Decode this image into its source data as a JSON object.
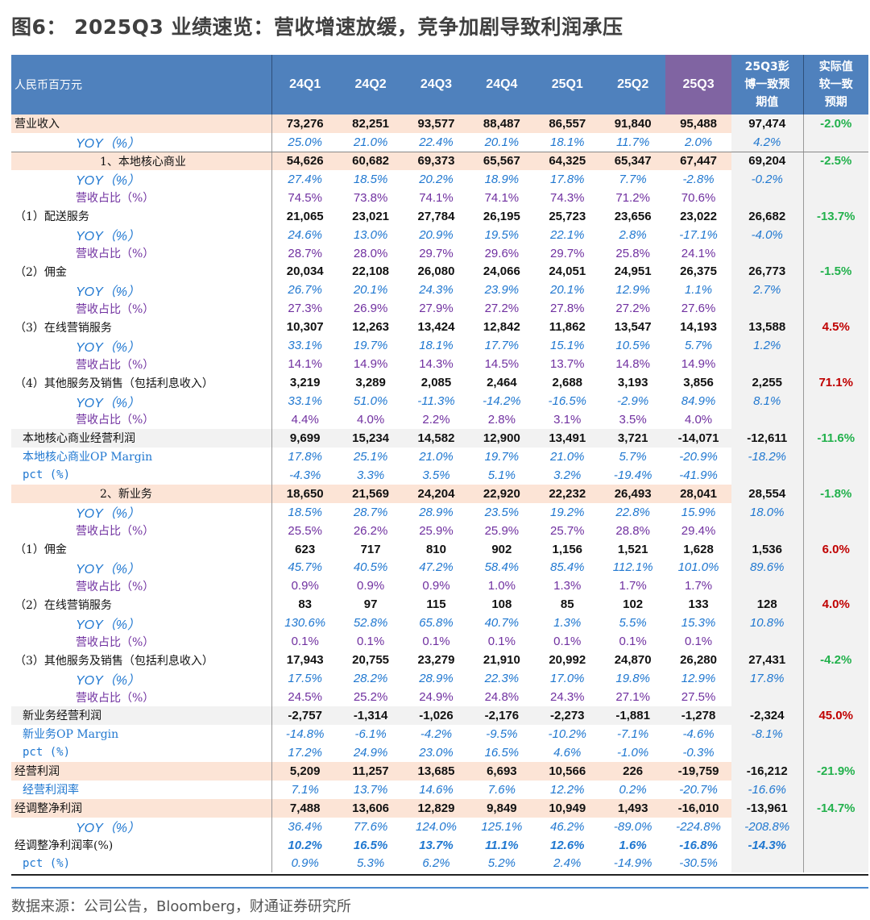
{
  "title": "图6： 2025Q3 业绩速览：营收增速放缓，竞争加剧导致利润承压",
  "header": {
    "unit": "人民币百万元",
    "periods": [
      "24Q1",
      "24Q2",
      "24Q3",
      "24Q4",
      "25Q1",
      "25Q2",
      "25Q3"
    ],
    "consensus": [
      "25Q3彭",
      "博一致预",
      "期值"
    ],
    "delta": [
      "实际值",
      "较一致",
      "预期"
    ]
  },
  "colors": {
    "header_bg": "#4f81bd",
    "current_quarter_bg": "#8064a2",
    "peach_row": "#fce4d6",
    "gray_row": "#f2f2f2",
    "yoy": "#1f77d0",
    "share": "#7030a0",
    "positive_delta": "#c00000",
    "negative_delta": "#22b14c"
  },
  "rows": [
    {
      "label": "营业收入",
      "type": "main peach",
      "indent": 4,
      "values": [
        "73,276",
        "82,251",
        "93,577",
        "88,487",
        "86,557",
        "91,840",
        "95,488"
      ],
      "consensus": "97,474",
      "delta": "-2.0%",
      "delta_color": "green"
    },
    {
      "label": "YOY（%）",
      "type": "yoy",
      "indent": 80,
      "values": [
        "25.0%",
        "21.0%",
        "22.4%",
        "20.1%",
        "18.1%",
        "11.7%",
        "2.0%"
      ],
      "consensus": "4.2%",
      "delta": ""
    },
    {
      "label": "1、本地核心商业",
      "type": "main peach sep",
      "indent": 110,
      "values": [
        "54,626",
        "60,682",
        "69,373",
        "65,567",
        "64,325",
        "65,347",
        "67,447"
      ],
      "consensus": "69,204",
      "delta": "-2.5%",
      "delta_color": "green"
    },
    {
      "label": "YOY（%）",
      "type": "yoy",
      "indent": 80,
      "values": [
        "27.4%",
        "18.5%",
        "20.2%",
        "18.9%",
        "17.8%",
        "7.7%",
        "-2.8%"
      ],
      "consensus": "-0.2%",
      "delta": ""
    },
    {
      "label": "营收占比（%）",
      "type": "share",
      "indent": 80,
      "values": [
        "74.5%",
        "73.8%",
        "74.1%",
        "74.1%",
        "74.3%",
        "71.2%",
        "70.6%"
      ],
      "consensus": "",
      "delta": ""
    },
    {
      "label": "（1）配送服务",
      "type": "main",
      "indent": 4,
      "values": [
        "21,065",
        "23,021",
        "27,784",
        "26,195",
        "25,723",
        "23,656",
        "23,022"
      ],
      "consensus": "26,682",
      "delta": "-13.7%",
      "delta_color": "green"
    },
    {
      "label": "YOY（%）",
      "type": "yoy",
      "indent": 80,
      "values": [
        "24.6%",
        "13.0%",
        "20.9%",
        "19.5%",
        "22.1%",
        "2.8%",
        "-17.1%"
      ],
      "consensus": "-4.0%",
      "delta": ""
    },
    {
      "label": "营收占比（%）",
      "type": "share",
      "indent": 80,
      "values": [
        "28.7%",
        "28.0%",
        "29.7%",
        "29.6%",
        "29.7%",
        "25.8%",
        "24.1%"
      ],
      "consensus": "",
      "delta": ""
    },
    {
      "label": "（2）佣金",
      "type": "main",
      "indent": 4,
      "values": [
        "20,034",
        "22,108",
        "26,080",
        "24,066",
        "24,051",
        "24,951",
        "26,375"
      ],
      "consensus": "26,773",
      "delta": "-1.5%",
      "delta_color": "green"
    },
    {
      "label": "YOY（%）",
      "type": "yoy",
      "indent": 80,
      "values": [
        "26.7%",
        "20.1%",
        "24.3%",
        "23.9%",
        "20.1%",
        "12.9%",
        "1.1%"
      ],
      "consensus": "2.7%",
      "delta": ""
    },
    {
      "label": "营收占比（%）",
      "type": "share",
      "indent": 80,
      "values": [
        "27.3%",
        "26.9%",
        "27.9%",
        "27.2%",
        "27.8%",
        "27.2%",
        "27.6%"
      ],
      "consensus": "",
      "delta": ""
    },
    {
      "label": "（3）在线营销服务",
      "type": "main",
      "indent": 4,
      "values": [
        "10,307",
        "12,263",
        "13,424",
        "12,842",
        "11,862",
        "13,547",
        "14,193"
      ],
      "consensus": "13,588",
      "delta": "4.5%",
      "delta_color": "red"
    },
    {
      "label": "YOY（%）",
      "type": "yoy",
      "indent": 80,
      "values": [
        "33.1%",
        "19.7%",
        "18.1%",
        "17.7%",
        "15.1%",
        "10.5%",
        "5.7%"
      ],
      "consensus": "1.2%",
      "delta": ""
    },
    {
      "label": "营收占比（%）",
      "type": "share",
      "indent": 80,
      "values": [
        "14.1%",
        "14.9%",
        "14.3%",
        "14.5%",
        "13.7%",
        "14.8%",
        "14.9%"
      ],
      "consensus": "",
      "delta": ""
    },
    {
      "label": "（4）其他服务及销售（包括利息收入）",
      "type": "main",
      "indent": 4,
      "values": [
        "3,219",
        "3,289",
        "2,085",
        "2,464",
        "2,688",
        "3,193",
        "3,856"
      ],
      "consensus": "2,255",
      "delta": "71.1%",
      "delta_color": "red"
    },
    {
      "label": "YOY（%）",
      "type": "yoy",
      "indent": 80,
      "values": [
        "33.1%",
        "51.0%",
        "-11.3%",
        "-14.2%",
        "-16.5%",
        "-2.9%",
        "84.9%"
      ],
      "consensus": "8.1%",
      "delta": ""
    },
    {
      "label": "营收占比（%）",
      "type": "share",
      "indent": 80,
      "values": [
        "4.4%",
        "4.0%",
        "2.2%",
        "2.8%",
        "3.1%",
        "3.5%",
        "4.0%"
      ],
      "consensus": "",
      "delta": ""
    },
    {
      "label": "本地核心商业经营利润",
      "type": "main gray",
      "indent": 14,
      "values": [
        "9,699",
        "15,234",
        "14,582",
        "12,900",
        "13,491",
        "3,721",
        "-14,071"
      ],
      "consensus": "-12,611",
      "delta": "-11.6%",
      "delta_color": "green"
    },
    {
      "label": "本地核心商业OP Margin",
      "type": "margin",
      "indent": 14,
      "values": [
        "17.8%",
        "25.1%",
        "21.0%",
        "19.7%",
        "21.0%",
        "5.7%",
        "-20.9%"
      ],
      "consensus": "-18.2%",
      "delta": ""
    },
    {
      "label": "pct (%)",
      "type": "pct",
      "indent": 14,
      "values": [
        "-4.3%",
        "3.3%",
        "3.5%",
        "5.1%",
        "3.2%",
        "-19.4%",
        "-41.9%"
      ],
      "consensus": "",
      "delta": ""
    },
    {
      "label": "2、新业务",
      "type": "main peach",
      "indent": 110,
      "values": [
        "18,650",
        "21,569",
        "24,204",
        "22,920",
        "22,232",
        "26,493",
        "28,041"
      ],
      "consensus": "28,554",
      "delta": "-1.8%",
      "delta_color": "green"
    },
    {
      "label": "YOY（%）",
      "type": "yoy",
      "indent": 80,
      "values": [
        "18.5%",
        "28.7%",
        "28.9%",
        "23.5%",
        "19.2%",
        "22.8%",
        "15.9%"
      ],
      "consensus": "18.0%",
      "delta": ""
    },
    {
      "label": "营收占比（%）",
      "type": "share",
      "indent": 80,
      "values": [
        "25.5%",
        "26.2%",
        "25.9%",
        "25.9%",
        "25.7%",
        "28.8%",
        "29.4%"
      ],
      "consensus": "",
      "delta": ""
    },
    {
      "label": "（1）佣金",
      "type": "main",
      "indent": 4,
      "values": [
        "623",
        "717",
        "810",
        "902",
        "1,156",
        "1,521",
        "1,628"
      ],
      "consensus": "1,536",
      "delta": "6.0%",
      "delta_color": "red"
    },
    {
      "label": "YOY（%）",
      "type": "yoy",
      "indent": 80,
      "values": [
        "45.7%",
        "40.5%",
        "47.2%",
        "58.4%",
        "85.4%",
        "112.1%",
        "101.0%"
      ],
      "consensus": "89.6%",
      "delta": ""
    },
    {
      "label": "营收占比（%）",
      "type": "share",
      "indent": 80,
      "values": [
        "0.9%",
        "0.9%",
        "0.9%",
        "1.0%",
        "1.3%",
        "1.7%",
        "1.7%"
      ],
      "consensus": "",
      "delta": ""
    },
    {
      "label": "（2）在线营销服务",
      "type": "main",
      "indent": 4,
      "values": [
        "83",
        "97",
        "115",
        "108",
        "85",
        "102",
        "133"
      ],
      "consensus": "128",
      "delta": "4.0%",
      "delta_color": "red"
    },
    {
      "label": "YOY（%）",
      "type": "yoy",
      "indent": 80,
      "values": [
        "130.6%",
        "52.8%",
        "65.8%",
        "40.7%",
        "1.3%",
        "5.5%",
        "15.3%"
      ],
      "consensus": "10.8%",
      "delta": ""
    },
    {
      "label": "营收占比（%）",
      "type": "share",
      "indent": 80,
      "values": [
        "0.1%",
        "0.1%",
        "0.1%",
        "0.1%",
        "0.1%",
        "0.1%",
        "0.1%"
      ],
      "consensus": "",
      "delta": ""
    },
    {
      "label": "（3）其他服务及销售（包括利息收入）",
      "type": "main",
      "indent": 4,
      "values": [
        "17,943",
        "20,755",
        "23,279",
        "21,910",
        "20,992",
        "24,870",
        "26,280"
      ],
      "consensus": "27,431",
      "delta": "-4.2%",
      "delta_color": "green"
    },
    {
      "label": "YOY（%）",
      "type": "yoy",
      "indent": 80,
      "values": [
        "17.5%",
        "28.2%",
        "28.9%",
        "22.3%",
        "17.0%",
        "19.8%",
        "12.9%"
      ],
      "consensus": "17.8%",
      "delta": ""
    },
    {
      "label": "营收占比（%）",
      "type": "share",
      "indent": 80,
      "values": [
        "24.5%",
        "25.2%",
        "24.9%",
        "24.8%",
        "24.3%",
        "27.1%",
        "27.5%"
      ],
      "consensus": "",
      "delta": ""
    },
    {
      "label": "新业务经营利润",
      "type": "main gray",
      "indent": 14,
      "values": [
        "-2,757",
        "-1,314",
        "-1,026",
        "-2,176",
        "-2,273",
        "-1,881",
        "-1,278"
      ],
      "consensus": "-2,324",
      "delta": "45.0%",
      "delta_color": "red"
    },
    {
      "label": "新业务OP Margin",
      "type": "margin",
      "indent": 14,
      "values": [
        "-14.8%",
        "-6.1%",
        "-4.2%",
        "-9.5%",
        "-10.2%",
        "-7.1%",
        "-4.6%"
      ],
      "consensus": "-8.1%",
      "delta": ""
    },
    {
      "label": "pct (%)",
      "type": "pct",
      "indent": 14,
      "values": [
        "17.2%",
        "24.9%",
        "23.0%",
        "16.5%",
        "4.6%",
        "-1.0%",
        "-0.3%"
      ],
      "consensus": "",
      "delta": ""
    },
    {
      "label": "经营利润",
      "type": "main peach",
      "indent": 4,
      "values": [
        "5,209",
        "11,257",
        "13,685",
        "6,693",
        "10,566",
        "226",
        "-19,759"
      ],
      "consensus": "-16,212",
      "delta": "-21.9%",
      "delta_color": "green"
    },
    {
      "label": "经营利润率",
      "type": "margin",
      "indent": 14,
      "values": [
        "7.1%",
        "13.7%",
        "14.6%",
        "7.6%",
        "12.2%",
        "0.2%",
        "-20.7%"
      ],
      "consensus": "-16.6%",
      "delta": ""
    },
    {
      "label": "经调整净利润",
      "type": "main peach",
      "indent": 4,
      "values": [
        "7,488",
        "13,606",
        "12,829",
        "9,849",
        "10,949",
        "1,493",
        "-16,010"
      ],
      "consensus": "-13,961",
      "delta": "-14.7%",
      "delta_color": "green"
    },
    {
      "label": "YOY（%）",
      "type": "yoy",
      "indent": 80,
      "values": [
        "36.4%",
        "77.6%",
        "124.0%",
        "125.1%",
        "46.2%",
        "-89.0%",
        "-224.8%"
      ],
      "consensus": "-208.8%",
      "delta": ""
    },
    {
      "label": "经调整净利润率(%)",
      "type": "boldblue",
      "indent": 4,
      "values": [
        "10.2%",
        "16.5%",
        "13.7%",
        "11.1%",
        "12.6%",
        "1.6%",
        "-16.8%"
      ],
      "consensus": "-14.3%",
      "delta": ""
    },
    {
      "label": "pct (%)",
      "type": "pct",
      "indent": 14,
      "values": [
        "0.9%",
        "5.3%",
        "6.2%",
        "5.2%",
        "2.4%",
        "-14.9%",
        "-30.5%"
      ],
      "consensus": "",
      "delta": ""
    }
  ],
  "source": "数据来源：公司公告，Bloomberg，财通证券研究所"
}
